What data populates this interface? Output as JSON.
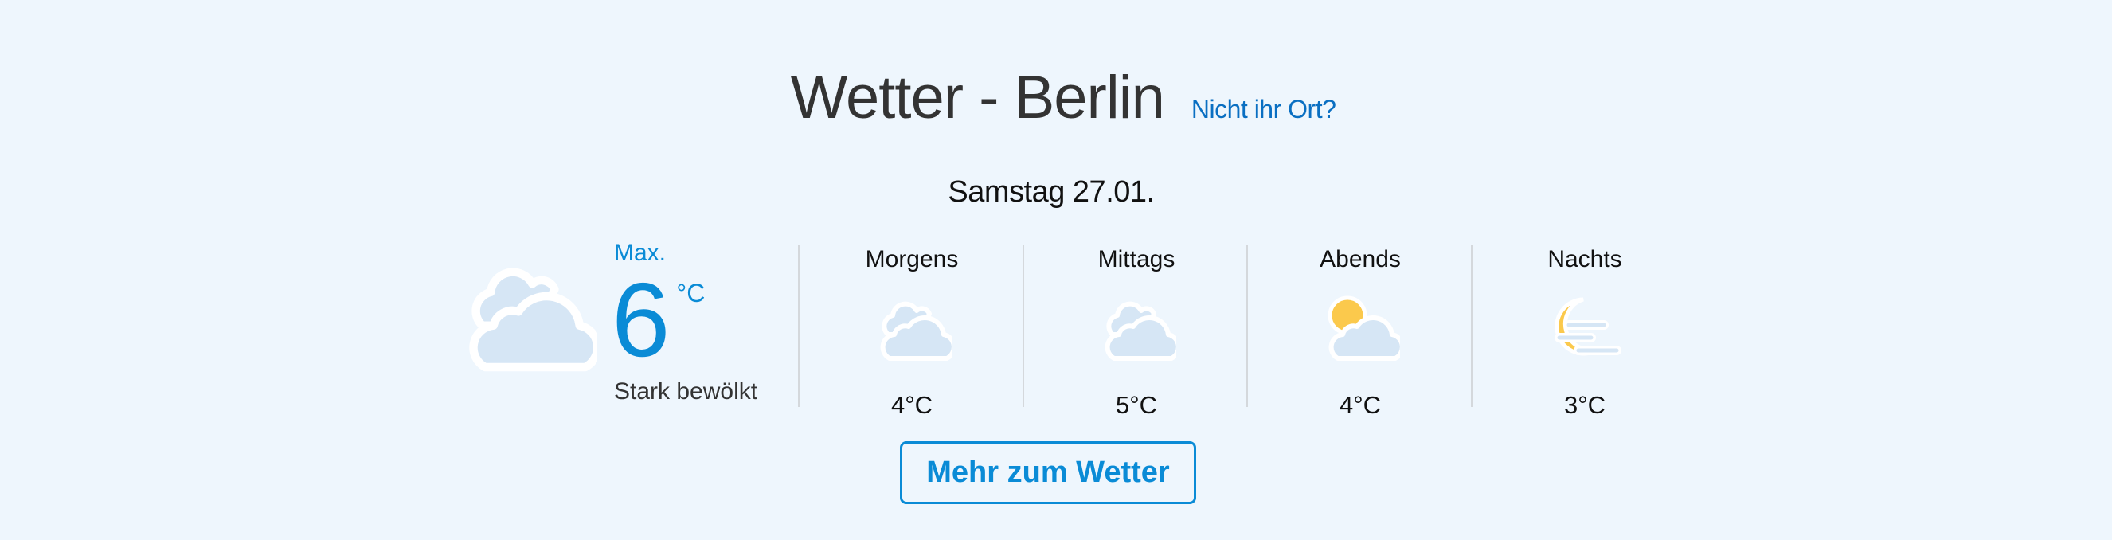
{
  "header": {
    "title": "Wetter - Berlin",
    "location_link": "Nicht ihr Ort?"
  },
  "date": "Samstag 27.01.",
  "today": {
    "icon": "cloudy-icon",
    "max_label": "Max.",
    "max_temp": "6",
    "unit": "°C",
    "description": "Stark bewölkt"
  },
  "periods": [
    {
      "label": "Morgens",
      "icon": "cloudy-icon",
      "temp": "4°C"
    },
    {
      "label": "Mittags",
      "icon": "cloudy-icon",
      "temp": "5°C"
    },
    {
      "label": "Abends",
      "icon": "partly-cloudy-icon",
      "temp": "4°C"
    },
    {
      "label": "Nachts",
      "icon": "moon-fog-icon",
      "temp": "3°C"
    }
  ],
  "more_button": "Mehr zum Wetter",
  "colors": {
    "accent": "#0a8bd6",
    "link": "#0a6fc2",
    "background": "#eef6fd",
    "cloud": "#d6e6f5",
    "sun": "#fbc94c"
  }
}
